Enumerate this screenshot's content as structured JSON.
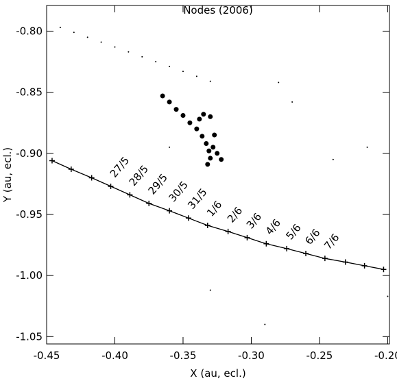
{
  "chart_data": {
    "type": "scatter",
    "title": "Nodes (2006)",
    "x_label": "X (au, ecl.)",
    "y_label": "Y (au, ecl.)",
    "xlim": [
      -0.45,
      -0.1987
    ],
    "ylim": [
      -1.056,
      -0.779
    ],
    "xticks": [
      {
        "value": -0.45,
        "label": "-0.45"
      },
      {
        "value": -0.4,
        "label": "-0.40"
      },
      {
        "value": -0.35,
        "label": "-0.35"
      },
      {
        "value": -0.3,
        "label": "-0.30"
      },
      {
        "value": -0.25,
        "label": "-0.25"
      },
      {
        "value": -0.2,
        "label": "-0.20"
      }
    ],
    "yticks": [
      {
        "value": -0.8,
        "label": "-0.80"
      },
      {
        "value": -0.85,
        "label": "-0.85"
      },
      {
        "value": -0.9,
        "label": "-0.90"
      },
      {
        "value": -0.95,
        "label": "-0.95"
      },
      {
        "value": -1.0,
        "label": "-1.00"
      },
      {
        "value": -1.05,
        "label": "-1.05"
      }
    ],
    "color": "#000000",
    "orbit": {
      "x": [
        -0.446,
        -0.432,
        -0.417,
        -0.403,
        -0.389,
        -0.375,
        -0.36,
        -0.346,
        -0.332,
        -0.317,
        -0.303,
        -0.289,
        -0.274,
        -0.26,
        -0.246,
        -0.231,
        -0.217,
        -0.203
      ],
      "y": [
        -0.906,
        -0.913,
        -0.92,
        -0.927,
        -0.934,
        -0.941,
        -0.947,
        -0.953,
        -0.959,
        -0.964,
        -0.969,
        -0.974,
        -0.978,
        -0.982,
        -0.986,
        -0.989,
        -0.992,
        -0.995
      ],
      "point_labels": [
        null,
        null,
        null,
        "27/5",
        "28/5",
        "29/5",
        "30/5",
        "31/5",
        "1/6",
        "2/6",
        "3/6",
        "4/6",
        "5/6",
        "6/6",
        "7/6",
        null,
        null,
        null
      ]
    },
    "series": [
      {
        "x": [
          -0.44,
          -0.43,
          -0.42,
          -0.41,
          -0.4,
          -0.39,
          -0.38,
          -0.37,
          -0.36,
          -0.35,
          -0.34,
          -0.33,
          -0.215,
          -0.27,
          -0.28,
          -0.36,
          -0.33,
          -0.29,
          -0.2,
          -0.24
        ],
        "y": [
          -0.797,
          -0.801,
          -0.805,
          -0.809,
          -0.813,
          -0.817,
          -0.821,
          -0.825,
          -0.829,
          -0.833,
          -0.837,
          -0.841,
          -0.895,
          -0.858,
          -0.842,
          -0.895,
          -1.012,
          -1.04,
          -1.017,
          -0.905
        ]
      },
      {
        "x": [
          -0.365,
          -0.36,
          -0.355,
          -0.35,
          -0.345,
          -0.34,
          -0.336,
          -0.333,
          -0.331,
          -0.33,
          -0.332,
          -0.328,
          -0.325,
          -0.322,
          -0.338,
          -0.335,
          -0.33,
          -0.327
        ],
        "y": [
          -0.853,
          -0.858,
          -0.864,
          -0.869,
          -0.875,
          -0.88,
          -0.886,
          -0.892,
          -0.898,
          -0.904,
          -0.909,
          -0.895,
          -0.9,
          -0.905,
          -0.872,
          -0.868,
          -0.87,
          -0.885
        ]
      }
    ]
  }
}
